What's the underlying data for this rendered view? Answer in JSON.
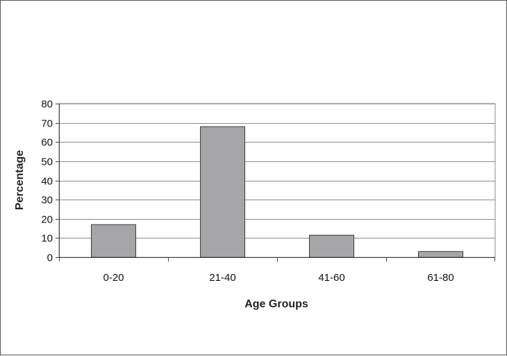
{
  "chart_data": {
    "type": "bar",
    "title": "",
    "xlabel": "Age Groups",
    "ylabel": "Percentage",
    "categories": [
      "0-20",
      "21-40",
      "41-60",
      "61-80"
    ],
    "values": [
      17,
      68,
      11.5,
      3
    ],
    "ylim": [
      0,
      80
    ],
    "yticks": [
      "0",
      "10",
      "20",
      "30",
      "40",
      "50",
      "60",
      "70",
      "80"
    ],
    "grid": true,
    "legend": "none",
    "colors": {
      "bar": "#a6a6a8",
      "bar_stroke": "#3a3a3a",
      "grid": "#8c8c8c",
      "axis": "#444444"
    }
  }
}
